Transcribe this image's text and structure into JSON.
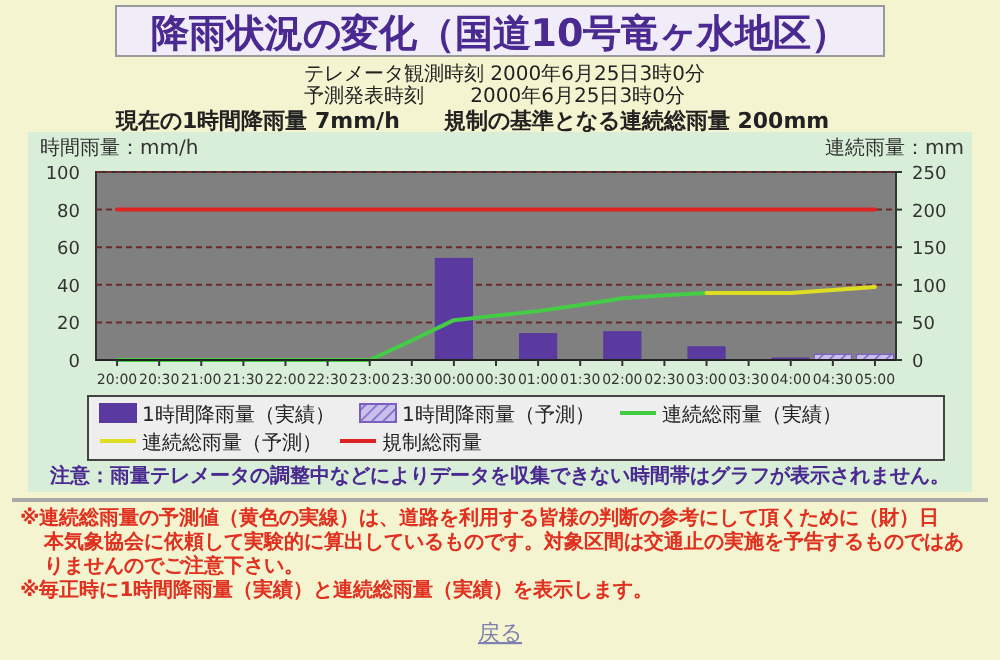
{
  "chart_data": {
    "type": "bar",
    "title": "降雨状況の変化（国道10号竜ヶ水地区）",
    "subtitle": [
      "テレメータ観測時刻 2000年6月25日3時0分",
      "予測発表時刻　　 2000年6月25日3時0分",
      "現在の1時間降雨量 7mm/h　　規制の基準となる連続総雨量 200mm"
    ],
    "ylabel": "時間雨量：mm/h",
    "y2label": "連続雨量：mm",
    "categories": [
      "20:00",
      "20:30",
      "21:00",
      "21:30",
      "22:00",
      "22:30",
      "23:00",
      "23:30",
      "00:00",
      "00:30",
      "01:00",
      "01:30",
      "02:00",
      "02:30",
      "03:00",
      "03:30",
      "04:00",
      "04:30",
      "05:00"
    ],
    "series": [
      {
        "name": "1時間降雨量（実績）",
        "color": "#5a3a9e",
        "values": [
          null,
          null,
          null,
          null,
          null,
          null,
          null,
          null,
          54,
          null,
          14,
          null,
          15,
          null,
          7,
          null,
          1,
          null,
          null
        ]
      },
      {
        "name": "1時間降雨量（予測）",
        "color": "#7a5fc0",
        "values": [
          null,
          null,
          null,
          null,
          null,
          null,
          null,
          null,
          null,
          null,
          null,
          null,
          null,
          null,
          null,
          null,
          null,
          3,
          3
        ]
      },
      {
        "name": "連続総雨量（実績）",
        "type": "line",
        "axis": "y2",
        "color": "#44cc44",
        "values": [
          0,
          0,
          0,
          0,
          0,
          0,
          0,
          26,
          53,
          59,
          65,
          73,
          82,
          86,
          89,
          null,
          null,
          null,
          null
        ]
      },
      {
        "name": "連続総雨量（予測）",
        "type": "line",
        "axis": "y2",
        "color": "#dddd22",
        "values": [
          null,
          null,
          null,
          null,
          null,
          null,
          null,
          null,
          null,
          null,
          null,
          null,
          null,
          null,
          89,
          89,
          89,
          93,
          97
        ]
      },
      {
        "name": "規制総雨量",
        "type": "line",
        "axis": "y2",
        "color": "#dd2222",
        "values": [
          200,
          200,
          200,
          200,
          200,
          200,
          200,
          200,
          200,
          200,
          200,
          200,
          200,
          200,
          200,
          200,
          200,
          200,
          200
        ]
      }
    ],
    "ylim": [
      0,
      100
    ],
    "yticks": [
      0,
      20,
      40,
      60,
      80,
      100
    ],
    "y2lim": [
      0,
      250
    ],
    "y2ticks": [
      0,
      50,
      100,
      150,
      200,
      250
    ],
    "grid": "y",
    "legend": "bottom",
    "annotations": [
      "注意：雨量テレメータの調整中などによりデータを収集できない時間帯はグラフが表示されません。",
      "※連続総雨量の予測値（黄色の実線）は、道路を利用する皆様の判断の参考にして頂くために（財）日本気象協会に依頼して実験的に算出しているものです。対象区間は交通止の実施を予告するものではありませんのでご注意下さい。",
      "※毎正時に1時間降雨量（実績）と連続総雨量（実績）を表示します。",
      "戻る"
    ]
  }
}
